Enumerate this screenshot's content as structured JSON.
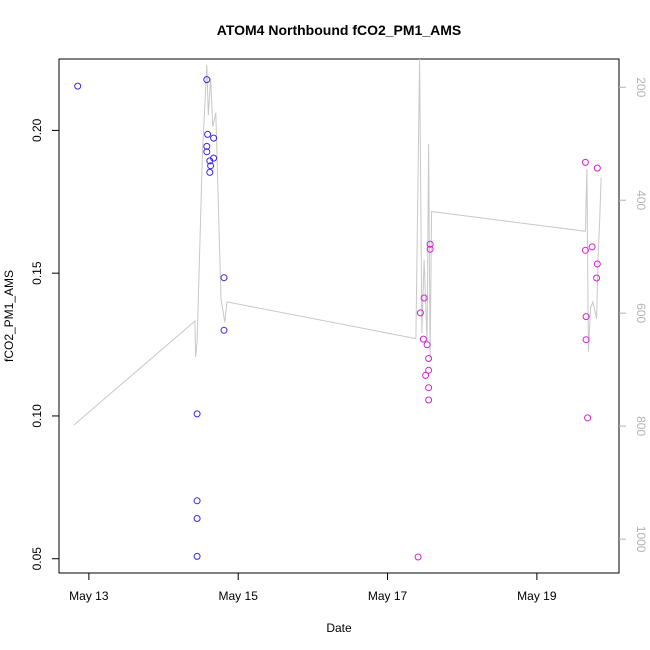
{
  "chart_data": {
    "type": "scatter",
    "title": "ATOM4 Northbound fCO2_PM1_AMS",
    "xlabel": "Date",
    "ylabel": "fCO2_PM1_AMS",
    "x_unit": "day of May",
    "xlim": [
      12.6,
      20.1
    ],
    "ylim": [
      0.045,
      0.225
    ],
    "y_ticks": [
      0.05,
      0.1,
      0.15,
      0.2
    ],
    "y_tick_labels": [
      "0.05",
      "0.10",
      "0.15",
      "0.20"
    ],
    "x_ticks": [
      13,
      15,
      17,
      19
    ],
    "x_tick_labels": [
      "May 13",
      "May 15",
      "May 17",
      "May 19"
    ],
    "y2_lim": [
      1060,
      150
    ],
    "y2_ticks": [
      200,
      400,
      600,
      800,
      1000
    ],
    "y2_tick_labels": [
      "200",
      "400",
      "600",
      "800",
      "1000"
    ],
    "grid": false,
    "colors": {
      "blue_points": "#3b28e6",
      "magenta_points": "#d223d2",
      "secondary_line": "#c8c8c8",
      "secondary_axis": "#b3b3b3"
    },
    "series": [
      {
        "name": "fCO2_PM1_AMS (blue)",
        "color": "#3b28e6",
        "points": [
          [
            12.85,
            0.2155
          ],
          [
            14.45,
            0.1007
          ],
          [
            14.45,
            0.0703
          ],
          [
            14.45,
            0.0641
          ],
          [
            14.45,
            0.0508
          ],
          [
            14.58,
            0.2178
          ],
          [
            14.59,
            0.1986
          ],
          [
            14.58,
            0.1944
          ],
          [
            14.58,
            0.1925
          ],
          [
            14.62,
            0.1893
          ],
          [
            14.67,
            0.1903
          ],
          [
            14.67,
            0.1973
          ],
          [
            14.63,
            0.1876
          ],
          [
            14.62,
            0.1853
          ],
          [
            14.81,
            0.1484
          ],
          [
            14.81,
            0.13
          ]
        ]
      },
      {
        "name": "fCO2_PM1_AMS (magenta)",
        "color": "#d223d2",
        "points": [
          [
            17.41,
            0.0506
          ],
          [
            17.44,
            0.1361
          ],
          [
            17.49,
            0.1413
          ],
          [
            17.48,
            0.1269
          ],
          [
            17.53,
            0.1249
          ],
          [
            17.51,
            0.1142
          ],
          [
            17.55,
            0.1201
          ],
          [
            17.55,
            0.116
          ],
          [
            17.55,
            0.1099
          ],
          [
            17.55,
            0.1056
          ],
          [
            17.57,
            0.1601
          ],
          [
            17.57,
            0.1584
          ],
          [
            19.65,
            0.1888
          ],
          [
            19.65,
            0.158
          ],
          [
            19.66,
            0.1348
          ],
          [
            19.66,
            0.1267
          ],
          [
            19.68,
            0.0993
          ],
          [
            19.74,
            0.1592
          ],
          [
            19.81,
            0.1868
          ],
          [
            19.81,
            0.1532
          ],
          [
            19.8,
            0.1483
          ]
        ]
      },
      {
        "name": "secondary axis series (gray line)",
        "color": "#c8c8c8",
        "axis": "right",
        "points": [
          [
            12.8,
            798
          ],
          [
            14.42,
            614
          ],
          [
            14.43,
            678
          ],
          [
            14.45,
            650
          ],
          [
            14.52,
            320
          ],
          [
            14.58,
            160
          ],
          [
            14.6,
            250
          ],
          [
            14.63,
            185
          ],
          [
            14.66,
            270
          ],
          [
            14.7,
            245
          ],
          [
            14.77,
            575
          ],
          [
            14.82,
            616
          ],
          [
            14.85,
            580
          ],
          [
            17.38,
            645
          ],
          [
            17.43,
            150
          ],
          [
            17.46,
            635
          ],
          [
            17.49,
            505
          ],
          [
            17.53,
            650
          ],
          [
            17.55,
            300
          ],
          [
            17.57,
            682
          ],
          [
            17.59,
            420
          ],
          [
            19.65,
            455
          ],
          [
            19.67,
            345
          ],
          [
            19.69,
            668
          ],
          [
            19.72,
            590
          ],
          [
            19.75,
            580
          ],
          [
            19.8,
            610
          ],
          [
            19.82,
            500
          ],
          [
            19.84,
            440
          ],
          [
            19.86,
            360
          ]
        ]
      }
    ]
  }
}
